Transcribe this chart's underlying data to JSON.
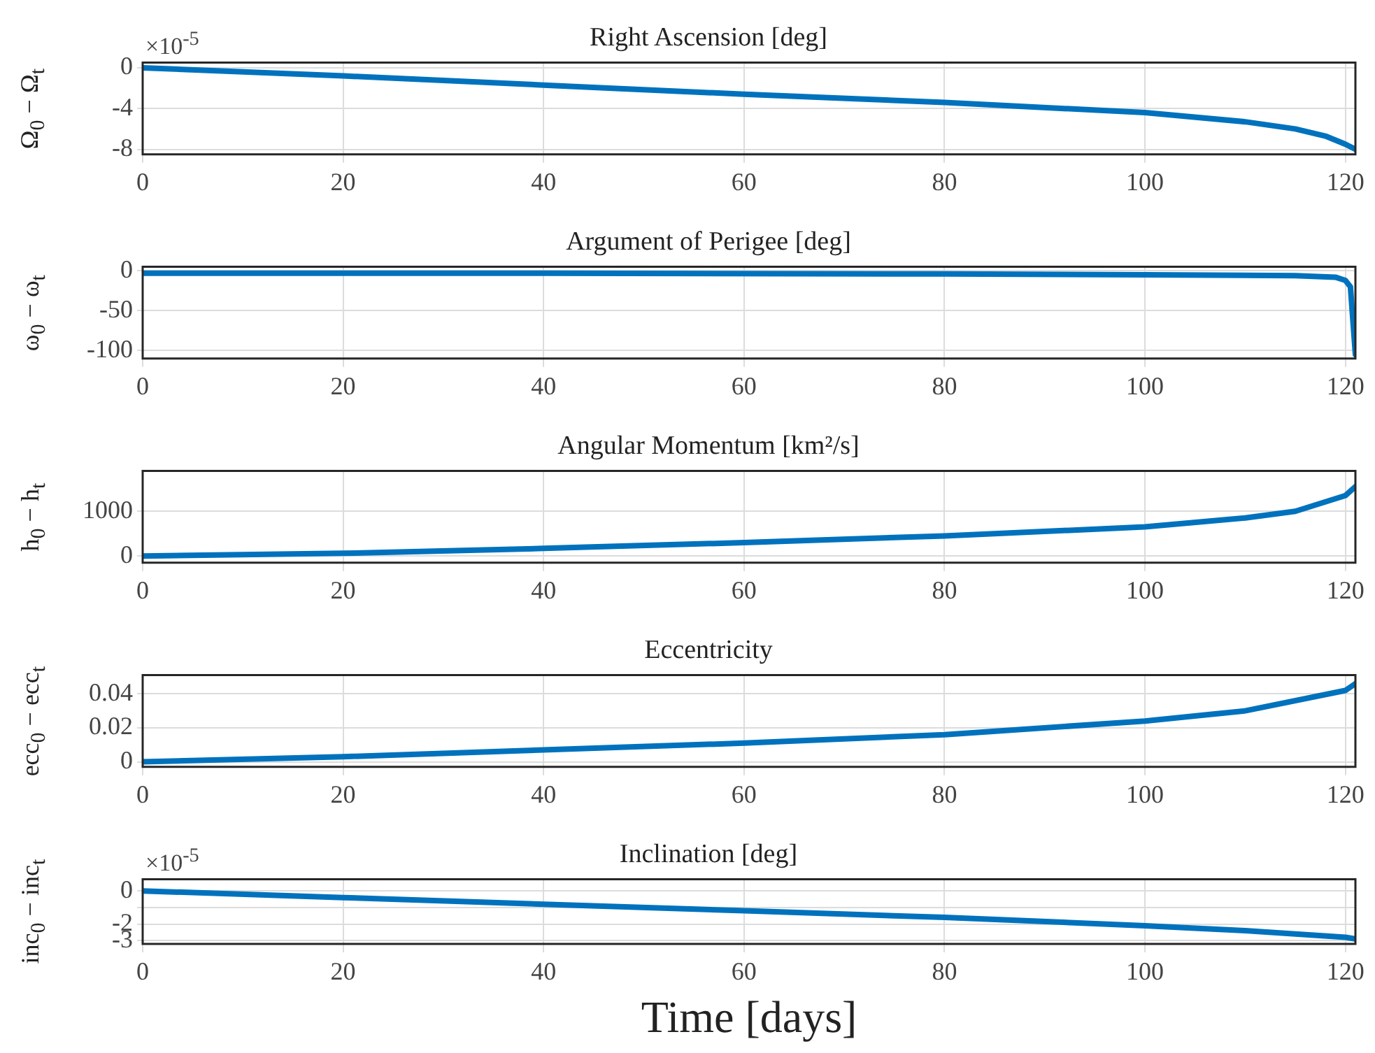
{
  "chart_data": [
    {
      "type": "line",
      "title": "Right Ascension [deg]",
      "ylabel": "Ω$_{0}$ − Ω$_{t}$",
      "annotations": [
        "×10$^{-5}$"
      ],
      "xlim": [
        0,
        121
      ],
      "xticks": [
        0,
        20,
        40,
        60,
        80,
        100,
        120
      ],
      "ylim": [
        -8.5,
        0.5
      ],
      "yticks": [
        -8,
        -4,
        0
      ],
      "grid": true,
      "legend": false,
      "marker": "none",
      "line_style": "solid",
      "series": [
        {
          "color": "#0072bd",
          "x": [
            0,
            20,
            40,
            60,
            80,
            100,
            110,
            115,
            118,
            120,
            121
          ],
          "values": [
            0,
            -0.8,
            -1.7,
            -2.6,
            -3.4,
            -4.4,
            -5.3,
            -6,
            -6.7,
            -7.5,
            -8
          ]
        }
      ]
    },
    {
      "type": "line",
      "title": "Argument of Perigee [deg]",
      "ylabel": "ω$_{0}$ − ω$_{t}$",
      "xlim": [
        0,
        121
      ],
      "xticks": [
        0,
        20,
        40,
        60,
        80,
        100,
        120
      ],
      "ylim": [
        -110,
        5
      ],
      "yticks": [
        -100,
        -50,
        0
      ],
      "grid": true,
      "legend": false,
      "marker": "none",
      "line_style": "solid",
      "series": [
        {
          "color": "#0072bd",
          "x": [
            0,
            40,
            80,
            100,
            115,
            119,
            120,
            120.5,
            121
          ],
          "values": [
            -3,
            -3,
            -4,
            -5,
            -6,
            -8,
            -12,
            -20,
            -105
          ]
        }
      ]
    },
    {
      "type": "line",
      "title": "Angular Momentum [km²/s]",
      "ylabel": "h$_{0}$ − h$_{t}$",
      "xlim": [
        0,
        121
      ],
      "xticks": [
        0,
        20,
        40,
        60,
        80,
        100,
        120
      ],
      "ylim": [
        -150,
        1900
      ],
      "yticks": [
        0,
        1000
      ],
      "grid": true,
      "legend": false,
      "marker": "none",
      "line_style": "solid",
      "series": [
        {
          "color": "#0072bd",
          "x": [
            0,
            20,
            40,
            60,
            80,
            100,
            110,
            115,
            120,
            121
          ],
          "values": [
            0,
            60,
            170,
            300,
            450,
            650,
            850,
            1000,
            1350,
            1550
          ]
        }
      ]
    },
    {
      "type": "line",
      "title": "Eccentricity",
      "ylabel": "ecc$_{0}$ − ecc$_{t}$",
      "xlim": [
        0,
        121
      ],
      "xticks": [
        0,
        20,
        40,
        60,
        80,
        100,
        120
      ],
      "ylim": [
        -0.003,
        0.051
      ],
      "yticks": [
        0,
        0.02,
        0.04
      ],
      "grid": true,
      "legend": false,
      "marker": "none",
      "line_style": "solid",
      "series": [
        {
          "color": "#0072bd",
          "x": [
            0,
            20,
            40,
            60,
            80,
            100,
            110,
            120,
            121
          ],
          "values": [
            0,
            0.003,
            0.007,
            0.011,
            0.016,
            0.024,
            0.03,
            0.042,
            0.046
          ]
        }
      ]
    },
    {
      "type": "line",
      "title": "Inclination [deg]",
      "ylabel": "inc$_{0}$ − inc$_{t}$",
      "xlabel": "Time [days]",
      "annotations": [
        "×10$^{-5}$"
      ],
      "xlim": [
        0,
        121
      ],
      "xticks": [
        0,
        20,
        40,
        60,
        80,
        100,
        120
      ],
      "ylim": [
        -3.2,
        0.7
      ],
      "yticks": [
        -3,
        -2,
        {
          "value": -1,
          "label": null
        },
        0
      ],
      "grid": true,
      "legend": false,
      "marker": "none",
      "line_style": "solid",
      "series": [
        {
          "color": "#0072bd",
          "x": [
            0,
            20,
            40,
            60,
            80,
            100,
            110,
            120,
            121
          ],
          "values": [
            0,
            -0.4,
            -0.8,
            -1.2,
            -1.6,
            -2.1,
            -2.4,
            -2.8,
            -2.9
          ]
        }
      ]
    }
  ]
}
